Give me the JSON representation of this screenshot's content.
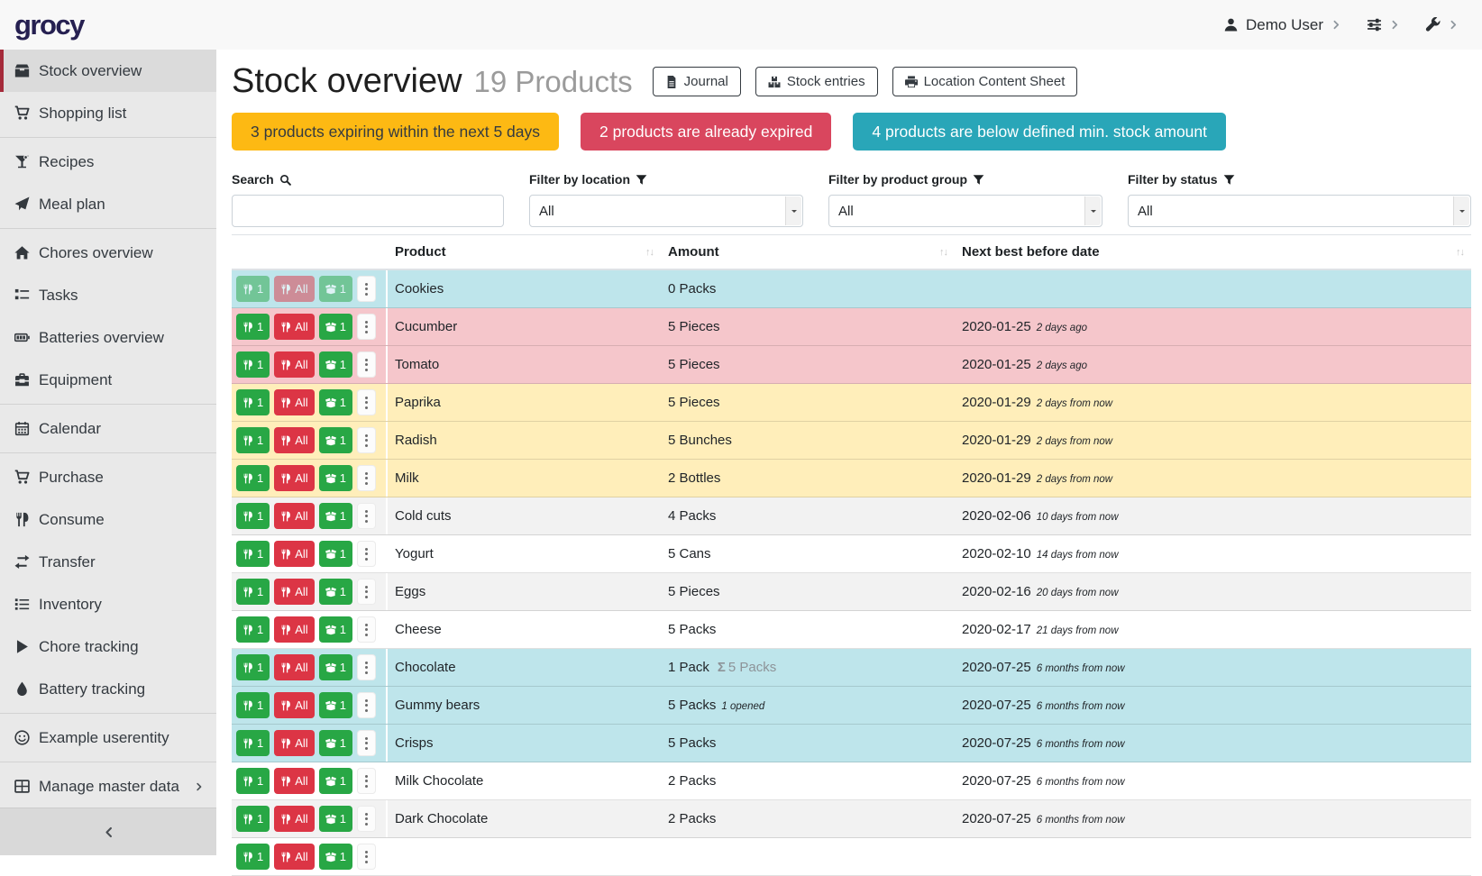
{
  "navbar": {
    "logo": "grocy",
    "menus": [
      {
        "name": "user-menu",
        "icon": "user-icon",
        "label": "Demo User"
      },
      {
        "name": "settings-menu",
        "icon": "sliders-icon",
        "label": ""
      },
      {
        "name": "admin-menu",
        "icon": "wrench-icon",
        "label": ""
      }
    ],
    "chevron": "chevron-right-icon"
  },
  "sidebar": {
    "groups": [
      {
        "items": [
          {
            "icon": "box",
            "label": "Stock overview",
            "active": true
          },
          {
            "icon": "cart",
            "label": "Shopping list"
          }
        ]
      },
      {
        "items": [
          {
            "icon": "cocktail",
            "label": "Recipes"
          },
          {
            "icon": "paper-plane",
            "label": "Meal plan"
          }
        ]
      },
      {
        "items": [
          {
            "icon": "home",
            "label": "Chores overview"
          },
          {
            "icon": "tasks",
            "label": "Tasks"
          },
          {
            "icon": "battery",
            "label": "Batteries overview"
          },
          {
            "icon": "toolbox",
            "label": "Equipment"
          }
        ]
      },
      {
        "items": [
          {
            "icon": "calendar",
            "label": "Calendar"
          }
        ]
      },
      {
        "items": [
          {
            "icon": "cart",
            "label": "Purchase"
          },
          {
            "icon": "utensils",
            "label": "Consume"
          },
          {
            "icon": "exchange",
            "label": "Transfer"
          },
          {
            "icon": "list",
            "label": "Inventory"
          },
          {
            "icon": "play",
            "label": "Chore tracking"
          },
          {
            "icon": "droplet",
            "label": "Battery tracking"
          }
        ]
      },
      {
        "items": [
          {
            "icon": "smiley",
            "label": "Example userentity"
          }
        ]
      },
      {
        "items": [
          {
            "icon": "table",
            "label": "Manage master data",
            "submenu": true
          }
        ]
      }
    ],
    "collapse_icon": "chevron-left-icon"
  },
  "header": {
    "title": "Stock overview",
    "subtitle": "19 Products",
    "buttons": [
      {
        "icon": "file-alt",
        "label": "Journal"
      },
      {
        "icon": "boxes",
        "label": "Stock entries"
      },
      {
        "icon": "printer",
        "label": "Location Content Sheet"
      }
    ]
  },
  "alerts": [
    {
      "type": "warning",
      "text": "3 products expiring within the next 5 days"
    },
    {
      "type": "danger",
      "text": "2 products are already expired"
    },
    {
      "type": "info",
      "text": "4 products are below defined min. stock amount"
    }
  ],
  "filters": {
    "search": {
      "label": "Search",
      "icon": "search",
      "value": ""
    },
    "location": {
      "label": "Filter by location",
      "icon": "filter",
      "value": "All"
    },
    "product_group": {
      "label": "Filter by product group",
      "icon": "filter",
      "value": "All"
    },
    "status": {
      "label": "Filter by status",
      "icon": "filter",
      "value": "All"
    }
  },
  "table": {
    "columns": [
      "Product",
      "Amount",
      "Next best before date"
    ],
    "sort_glyph": "↑↓",
    "row_actions": {
      "consume_one": {
        "icon": "utensils",
        "label": "1"
      },
      "consume_all": {
        "icon": "utensils",
        "label": "All"
      },
      "open_one": {
        "icon": "box-open",
        "label": "1"
      },
      "menu": {
        "icon": "ellipsis-v"
      }
    },
    "rows": [
      {
        "product": "Cookies",
        "amount": "0 Packs",
        "date": "",
        "due": "",
        "color": "info",
        "disabled": true
      },
      {
        "product": "Cucumber",
        "amount": "5 Pieces",
        "date": "2020-01-25",
        "due": "2 days ago",
        "color": "danger"
      },
      {
        "product": "Tomato",
        "amount": "5 Pieces",
        "date": "2020-01-25",
        "due": "2 days ago",
        "color": "danger"
      },
      {
        "product": "Paprika",
        "amount": "5 Pieces",
        "date": "2020-01-29",
        "due": "2 days from now",
        "color": "warning"
      },
      {
        "product": "Radish",
        "amount": "5 Bunches",
        "date": "2020-01-29",
        "due": "2 days from now",
        "color": "warning"
      },
      {
        "product": "Milk",
        "amount": "2 Bottles",
        "date": "2020-01-29",
        "due": "2 days from now",
        "color": "warning"
      },
      {
        "product": "Cold cuts",
        "amount": "4 Packs",
        "date": "2020-02-06",
        "due": "10 days from now",
        "color": "stripe"
      },
      {
        "product": "Yogurt",
        "amount": "5 Cans",
        "date": "2020-02-10",
        "due": "14 days from now",
        "color": ""
      },
      {
        "product": "Eggs",
        "amount": "5 Pieces",
        "date": "2020-02-16",
        "due": "20 days from now",
        "color": "stripe"
      },
      {
        "product": "Cheese",
        "amount": "5 Packs",
        "date": "2020-02-17",
        "due": "21 days from now",
        "color": ""
      },
      {
        "product": "Chocolate",
        "amount": "1 Pack",
        "sum": "5 Packs",
        "date": "2020-07-25",
        "due": "6 months from now",
        "color": "info"
      },
      {
        "product": "Gummy bears",
        "amount": "5 Packs",
        "note": "1 opened",
        "date": "2020-07-25",
        "due": "6 months from now",
        "color": "info"
      },
      {
        "product": "Crisps",
        "amount": "5 Packs",
        "date": "2020-07-25",
        "due": "6 months from now",
        "color": "info"
      },
      {
        "product": "Milk Chocolate",
        "amount": "2 Packs",
        "date": "2020-07-25",
        "due": "6 months from now",
        "color": ""
      },
      {
        "product": "Dark Chocolate",
        "amount": "2 Packs",
        "date": "2020-07-25",
        "due": "6 months from now",
        "color": "stripe"
      },
      {
        "product": "",
        "amount": "",
        "date": "",
        "due": "",
        "color": "",
        "partial": true
      }
    ]
  },
  "colors": {
    "brand": "#262051",
    "accent": "#a52a3a",
    "alert_warning": "#fdb913",
    "alert_danger": "#d9465e",
    "alert_info": "#29a6b8",
    "row_info": "#bee5eb",
    "row_danger": "#f5c6cb",
    "row_warning": "#ffeeba",
    "btn_green": "#28a745",
    "btn_red": "#dc3545"
  }
}
